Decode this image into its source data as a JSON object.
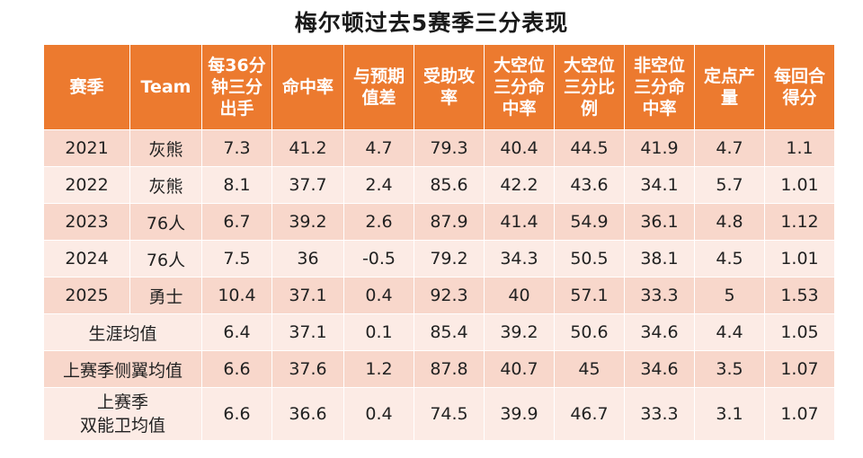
{
  "title": "梅尔顿过去5赛季三分表现",
  "columns": [
    [
      "赛季"
    ],
    [
      "Team"
    ],
    [
      "每36分",
      "钟三分",
      "出手"
    ],
    [
      "命中率"
    ],
    [
      "与预期",
      "值差"
    ],
    [
      "受助攻",
      "率"
    ],
    [
      "大空位",
      "三分命",
      "中率"
    ],
    [
      "大空位",
      "三分比",
      "例"
    ],
    [
      "非空位",
      "三分命",
      "中率"
    ],
    [
      "定点产",
      "量"
    ],
    [
      "每回合",
      "得分"
    ]
  ],
  "rows": [
    {
      "season": "2021",
      "team": "灰熊",
      "values": [
        "7.3",
        "41.2",
        "4.7",
        "79.3",
        "40.4",
        "44.5",
        "41.9",
        "4.7",
        "1.1"
      ]
    },
    {
      "season": "2022",
      "team": "灰熊",
      "values": [
        "8.1",
        "37.7",
        "2.4",
        "85.6",
        "42.2",
        "43.6",
        "34.1",
        "5.7",
        "1.01"
      ]
    },
    {
      "season": "2023",
      "team": "76人",
      "values": [
        "6.7",
        "39.2",
        "2.6",
        "87.9",
        "41.4",
        "54.9",
        "36.1",
        "4.8",
        "1.12"
      ]
    },
    {
      "season": "2024",
      "team": "76人",
      "values": [
        "7.5",
        "36",
        "-0.5",
        "79.2",
        "34.3",
        "50.5",
        "38.1",
        "4.5",
        "1.01"
      ]
    },
    {
      "season": "2025",
      "team": "勇士",
      "values": [
        "10.4",
        "37.1",
        "0.4",
        "92.3",
        "40",
        "57.1",
        "33.3",
        "5",
        "1.53"
      ]
    }
  ],
  "summary_rows": [
    {
      "label": [
        "生涯均值"
      ],
      "values": [
        "6.4",
        "37.1",
        "0.1",
        "85.4",
        "39.2",
        "50.6",
        "34.6",
        "4.4",
        "1.05"
      ]
    },
    {
      "label": [
        "上赛季侧翼均值"
      ],
      "values": [
        "6.6",
        "37.6",
        "1.2",
        "87.8",
        "40.7",
        "45",
        "34.6",
        "3.5",
        "1.07"
      ]
    },
    {
      "label": [
        "上赛季",
        "双能卫均值"
      ],
      "values": [
        "6.6",
        "36.6",
        "0.4",
        "74.5",
        "39.9",
        "46.7",
        "33.3",
        "3.1",
        "1.07"
      ]
    }
  ],
  "colors": {
    "header": "#ec7a2f",
    "row_dark": "#f8d7cb",
    "row_light": "#fcebe5",
    "highlight": "#e01010"
  }
}
